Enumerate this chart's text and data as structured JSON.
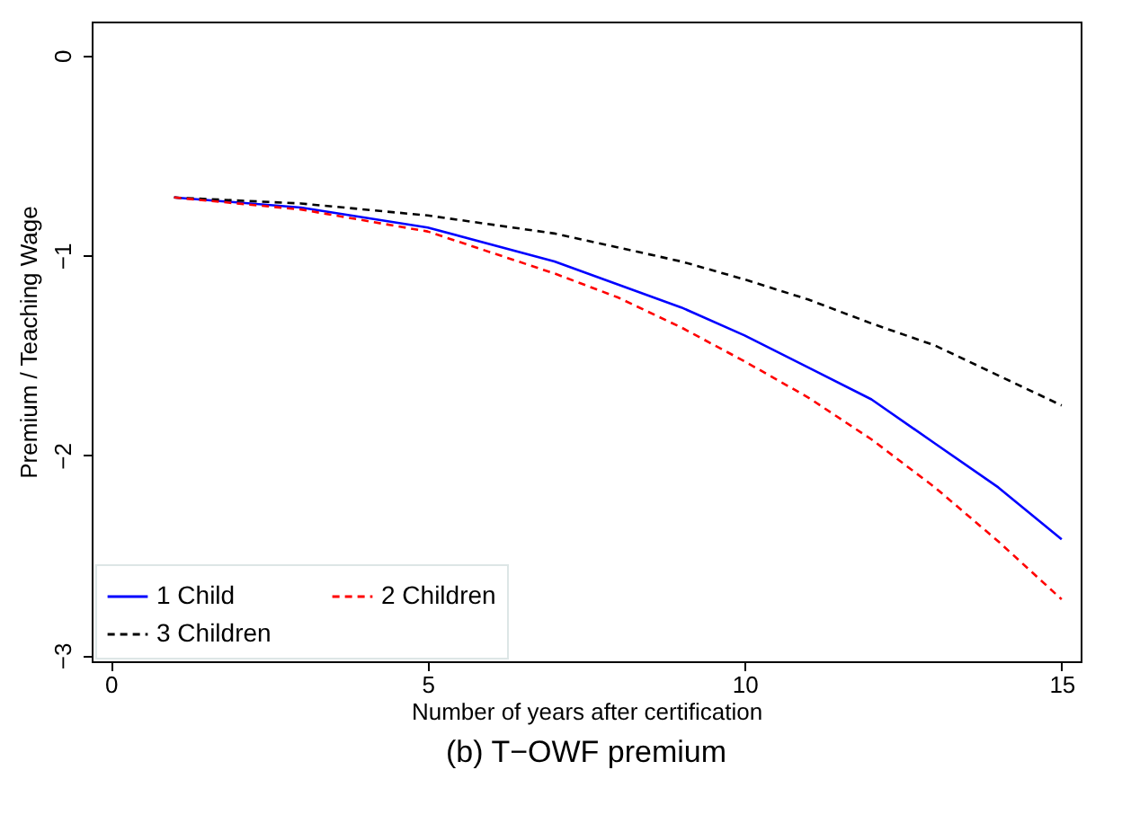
{
  "chart_data": {
    "type": "line",
    "title": "(b) T−OWF premium",
    "xlabel": "Number of years after certification",
    "ylabel": "Premium / Teaching Wage",
    "xlim": [
      -0.3,
      15.3
    ],
    "xticks": [
      0,
      5,
      10,
      15
    ],
    "ylim": [
      -3.03,
      0.17
    ],
    "yticks": [
      -3,
      -2,
      -1,
      0
    ],
    "grid": false,
    "legend": "bottom left",
    "series": [
      {
        "name": "1 Child",
        "color": "#0000ff",
        "line_style": "solid",
        "x": [
          1,
          3,
          5,
          7,
          9,
          10,
          11,
          12,
          13,
          14,
          15
        ],
        "values": [
          -0.71,
          -0.76,
          -0.86,
          -1.03,
          -1.26,
          -1.4,
          -1.56,
          -1.72,
          -1.94,
          -2.16,
          -2.42
        ]
      },
      {
        "name": "2 Children",
        "color": "#ff0000",
        "line_style": "dashed",
        "x": [
          1,
          3,
          5,
          7,
          8,
          9,
          10,
          11,
          12,
          13,
          14,
          15
        ],
        "values": [
          -0.71,
          -0.77,
          -0.88,
          -1.09,
          -1.21,
          -1.36,
          -1.53,
          -1.71,
          -1.92,
          -2.16,
          -2.43,
          -2.72
        ]
      },
      {
        "name": "3 Children",
        "color": "#000000",
        "line_style": "dashed",
        "x": [
          1,
          3,
          5,
          7,
          9,
          10,
          11,
          12,
          13,
          14,
          15
        ],
        "values": [
          -0.71,
          -0.74,
          -0.8,
          -0.89,
          -1.03,
          -1.12,
          -1.22,
          -1.34,
          -1.45,
          -1.6,
          -1.75
        ]
      }
    ]
  }
}
